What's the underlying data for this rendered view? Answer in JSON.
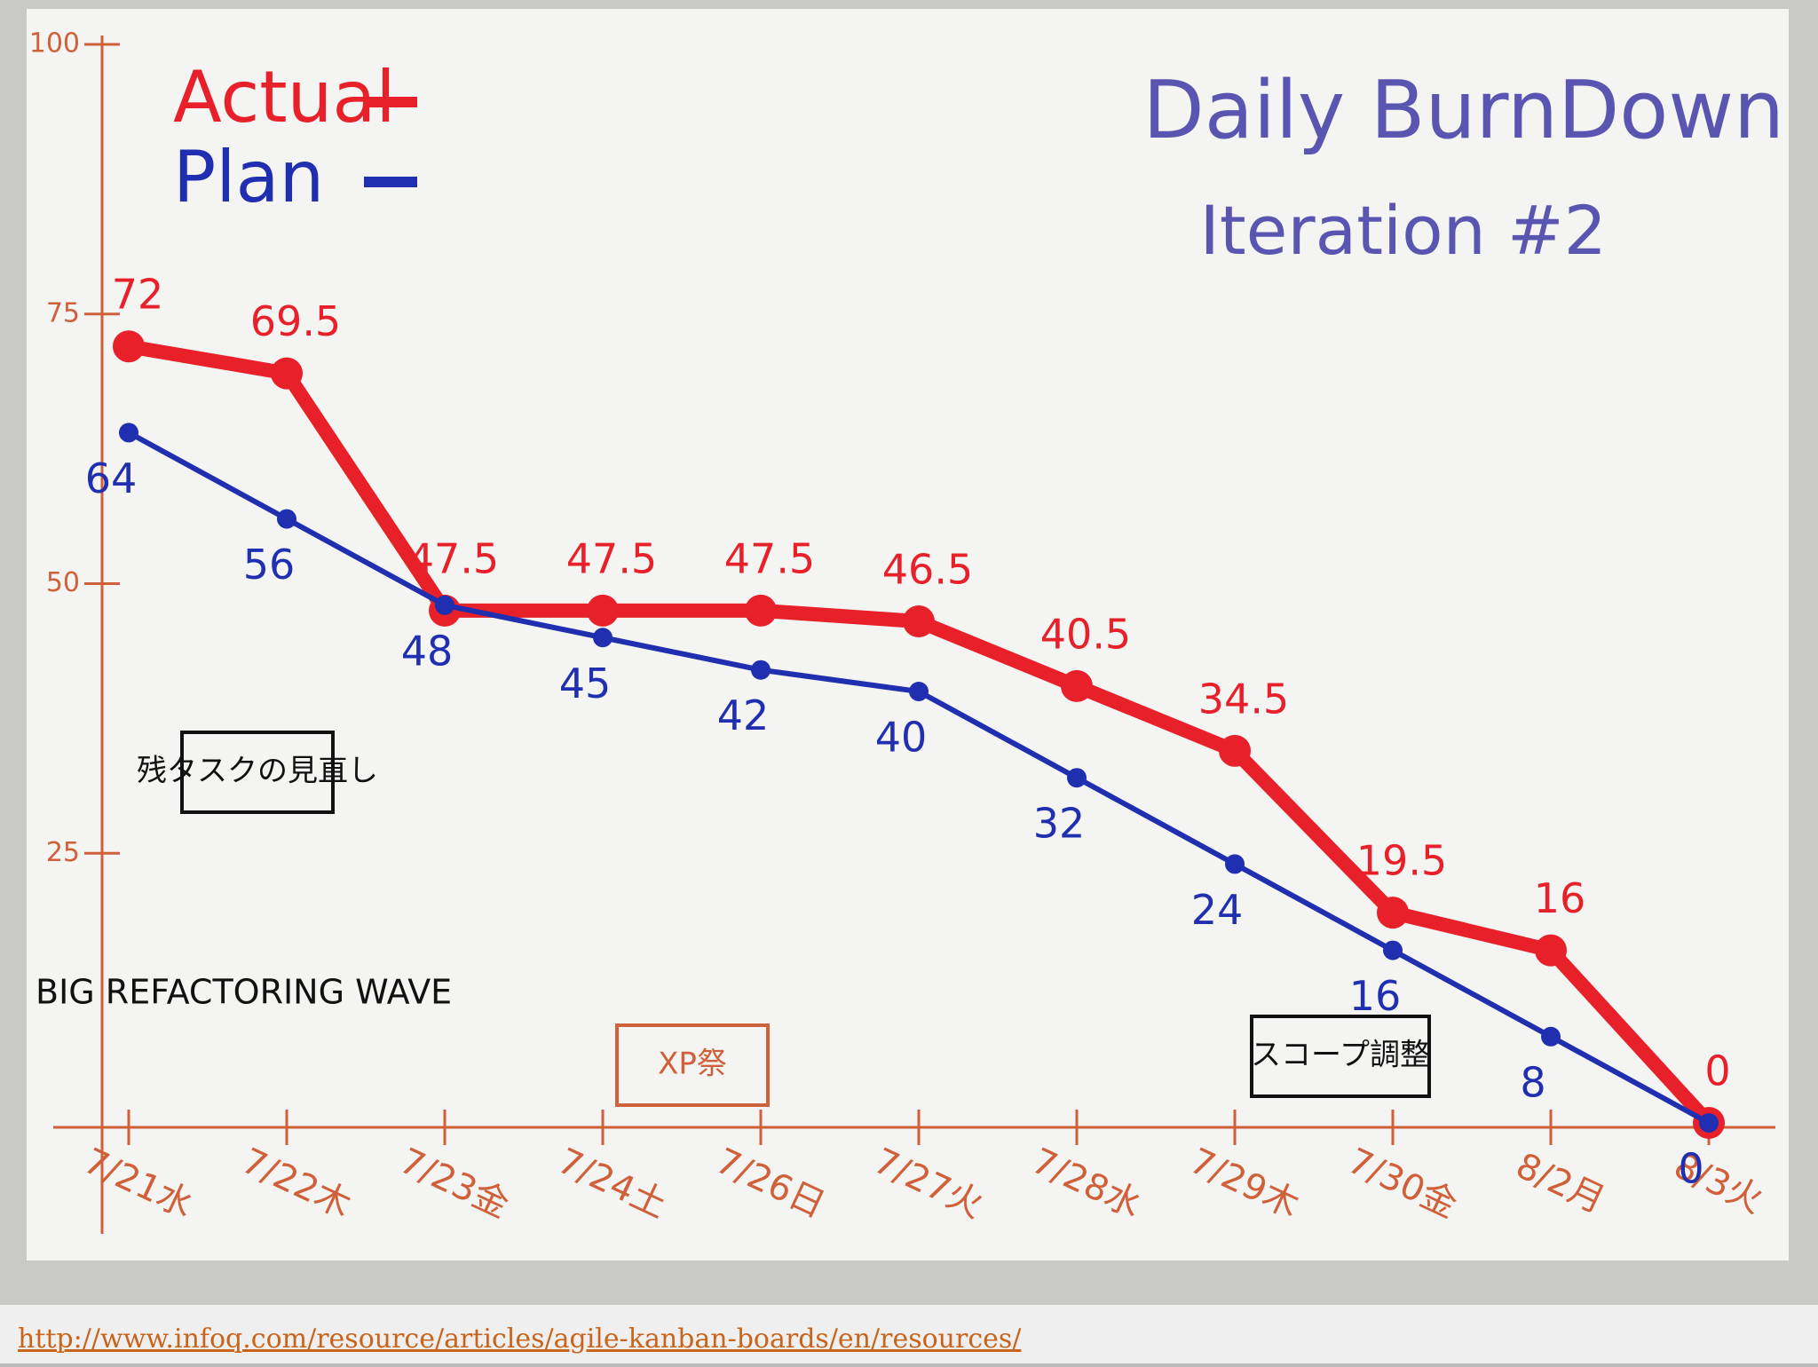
{
  "chart_data": {
    "type": "line",
    "title": "Daily BurnDown",
    "subtitle": "Iteration #2",
    "categories": [
      "7/21水",
      "7/22木",
      "7/23金",
      "7/24土",
      "7/26日",
      "7/27火",
      "7/28水",
      "7/29木",
      "7/30金",
      "8/2月",
      "8/3火"
    ],
    "series": [
      {
        "name": "Actual",
        "color": "#e8202a",
        "values": [
          72,
          69.5,
          47.5,
          47.5,
          47.5,
          46.5,
          40.5,
          34.5,
          19.5,
          16,
          0
        ]
      },
      {
        "name": "Plan",
        "color": "#1f2fb0",
        "values": [
          64,
          56,
          48,
          45,
          42,
          40,
          32,
          24,
          16,
          8,
          0
        ]
      }
    ],
    "ylim": [
      0,
      100
    ],
    "yticks": [
      25,
      50,
      75,
      100
    ],
    "annotations": [
      "BIG REFACTORING WAVE",
      "XP祭",
      "残タスクの見直し",
      "スコープ調整"
    ]
  },
  "footer": {
    "link": "http://www.infoq.com/resource/articles/agile-kanban-boards/en/resources/"
  }
}
